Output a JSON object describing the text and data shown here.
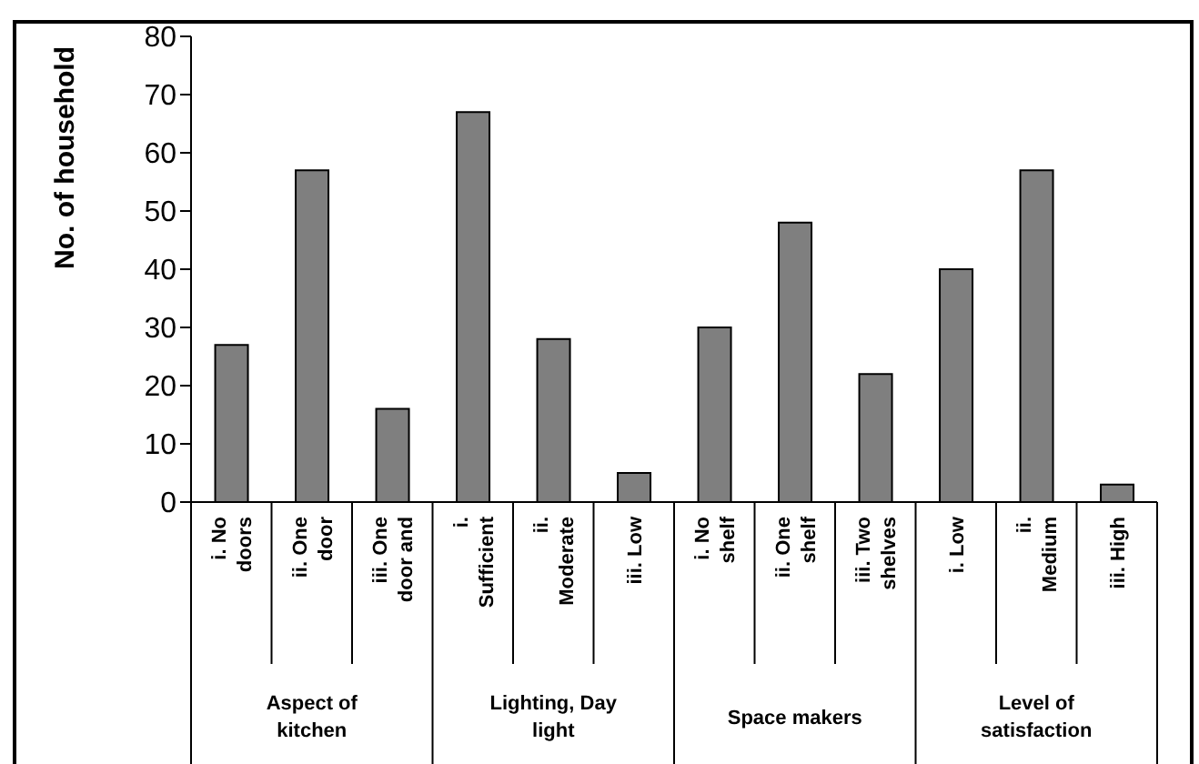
{
  "chart_data": {
    "type": "bar",
    "ylabel": "No. of household",
    "categories": [
      "i. No doors",
      "ii. One door",
      "iii. One door and",
      "i. Sufficient",
      "ii. Moderate",
      "iii. Low",
      "i. No shelf",
      "ii. One shelf",
      "iii. Two shelves",
      "i. Low",
      "ii. Medium",
      "iii. High"
    ],
    "values": [
      27,
      57,
      16,
      67,
      28,
      5,
      30,
      48,
      22,
      40,
      57,
      3
    ],
    "color": "#7f7f7f",
    "annotations": [
      "Aspect of kitchen",
      "Lighting, Day light",
      "Space makers",
      "Level of satisfaction"
    ],
    "ylim": [
      0,
      80
    ],
    "yticks": [
      0,
      10,
      20,
      30,
      40,
      50,
      60,
      70,
      80
    ],
    "grid": false,
    "legend": false
  }
}
